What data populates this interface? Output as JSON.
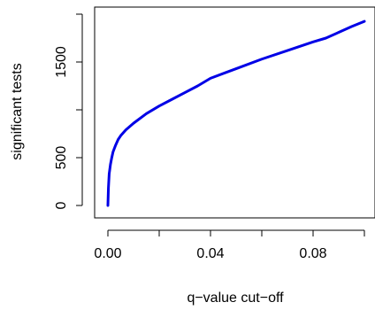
{
  "chart_data": {
    "type": "line",
    "title": "",
    "xlabel": "q−value cut−off",
    "ylabel": "significant tests",
    "xlim": [
      0.0,
      0.1
    ],
    "ylim": [
      0,
      2000
    ],
    "x_ticks": [
      0.0,
      0.02,
      0.04,
      0.06,
      0.08,
      0.1
    ],
    "x_tick_labels": [
      "0.00",
      "",
      "0.04",
      "",
      "0.08",
      ""
    ],
    "y_ticks": [
      0,
      500,
      1000,
      1500,
      2000
    ],
    "y_tick_labels": [
      "0",
      "500",
      "",
      "1500",
      ""
    ],
    "grid": false,
    "legend": "none",
    "series": [
      {
        "color": "#0000e6",
        "x": [
          0.0,
          0.0002,
          0.0005,
          0.001,
          0.0015,
          0.002,
          0.003,
          0.004,
          0.005,
          0.007,
          0.01,
          0.015,
          0.02,
          0.025,
          0.03,
          0.035,
          0.04,
          0.05,
          0.06,
          0.07,
          0.08,
          0.085,
          0.09,
          0.095,
          0.1
        ],
        "y": [
          0,
          180,
          330,
          430,
          500,
          560,
          630,
          690,
          730,
          790,
          860,
          960,
          1040,
          1110,
          1180,
          1250,
          1330,
          1430,
          1530,
          1620,
          1710,
          1750,
          1810,
          1870,
          1925
        ]
      }
    ]
  }
}
